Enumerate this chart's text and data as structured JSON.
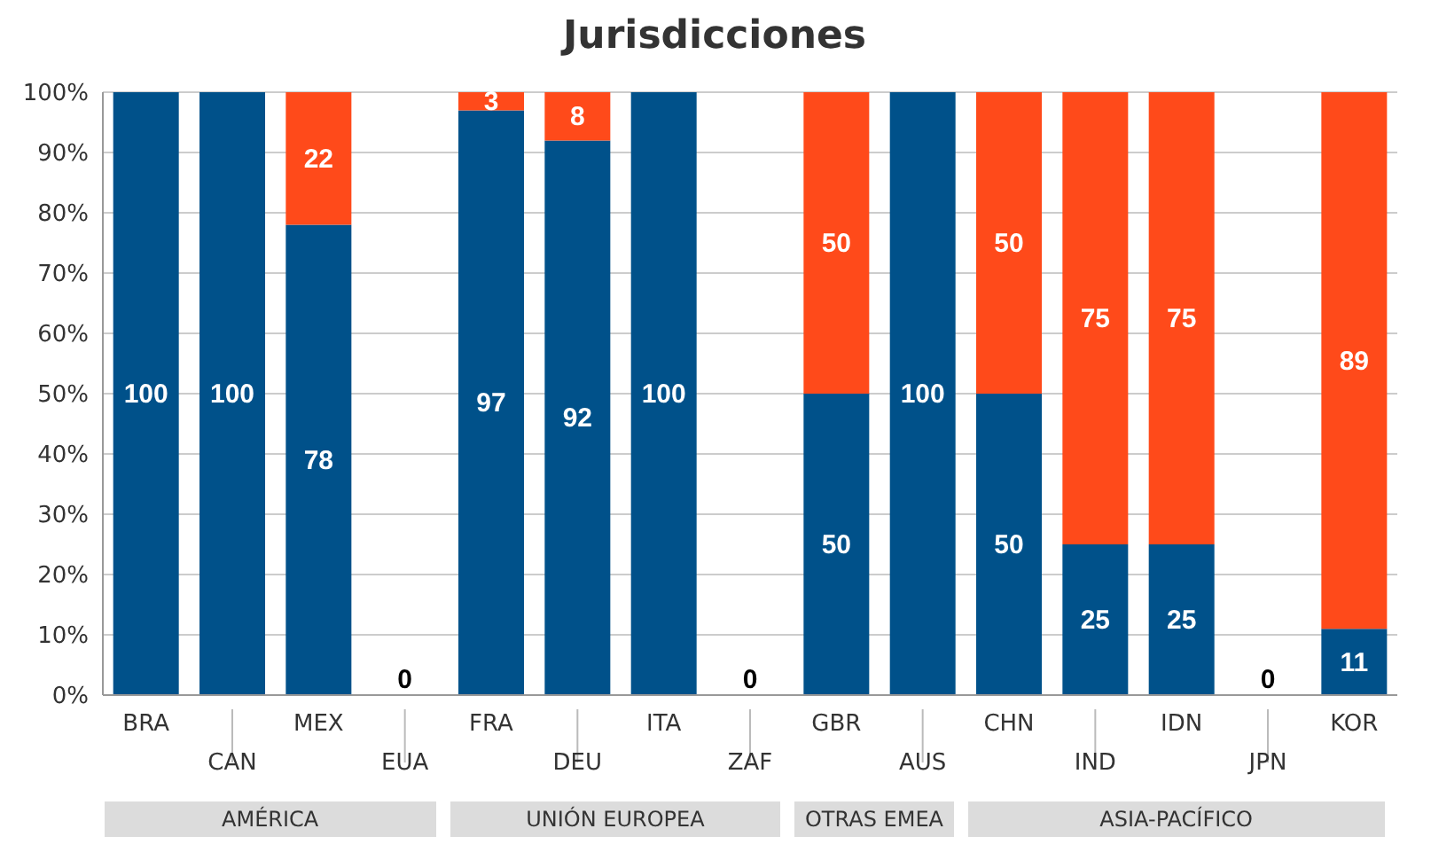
{
  "chart_data": {
    "type": "bar",
    "title": "Jurisdicciones",
    "stacked": true,
    "categories": [
      "BRA",
      "CAN",
      "MEX",
      "EUA",
      "FRA",
      "DEU",
      "ITA",
      "ZAF",
      "GBR",
      "AUS",
      "CHN",
      "IND",
      "IDN",
      "JPN",
      "KOR"
    ],
    "series": [
      {
        "color": "#00518a",
        "values": [
          100,
          100,
          78,
          0,
          97,
          92,
          100,
          0,
          50,
          100,
          50,
          25,
          25,
          0,
          11
        ],
        "value_labels": [
          "100",
          "100",
          "78",
          "0",
          "97",
          "92",
          "100",
          "0",
          "50",
          "100",
          "50",
          "25",
          "25",
          "0",
          "11"
        ]
      },
      {
        "color": "#ff4a1a",
        "values": [
          0,
          0,
          22,
          0,
          3,
          8,
          0,
          0,
          50,
          0,
          50,
          75,
          75,
          0,
          89
        ],
        "value_labels": [
          null,
          null,
          "22",
          null,
          "3",
          "8",
          null,
          null,
          "50",
          null,
          "50",
          "75",
          "75",
          null,
          "89"
        ]
      }
    ],
    "ylim": [
      0,
      100
    ],
    "yticks": [
      {
        "value": 0,
        "label": "0%"
      },
      {
        "value": 10,
        "label": "10%"
      },
      {
        "value": 20,
        "label": "20%"
      },
      {
        "value": 30,
        "label": "30%"
      },
      {
        "value": 40,
        "label": "40%"
      },
      {
        "value": 50,
        "label": "50%"
      },
      {
        "value": 60,
        "label": "60%"
      },
      {
        "value": 70,
        "label": "70%"
      },
      {
        "value": 80,
        "label": "80%"
      },
      {
        "value": 90,
        "label": "90%"
      },
      {
        "value": 100,
        "label": "100%"
      }
    ],
    "grid": "y",
    "legend": false,
    "annotations": [
      "AMÉRICA",
      "UNIÓN EUROPEA",
      "OTRAS EMEA",
      "ASIA-PACÍFICO"
    ]
  }
}
